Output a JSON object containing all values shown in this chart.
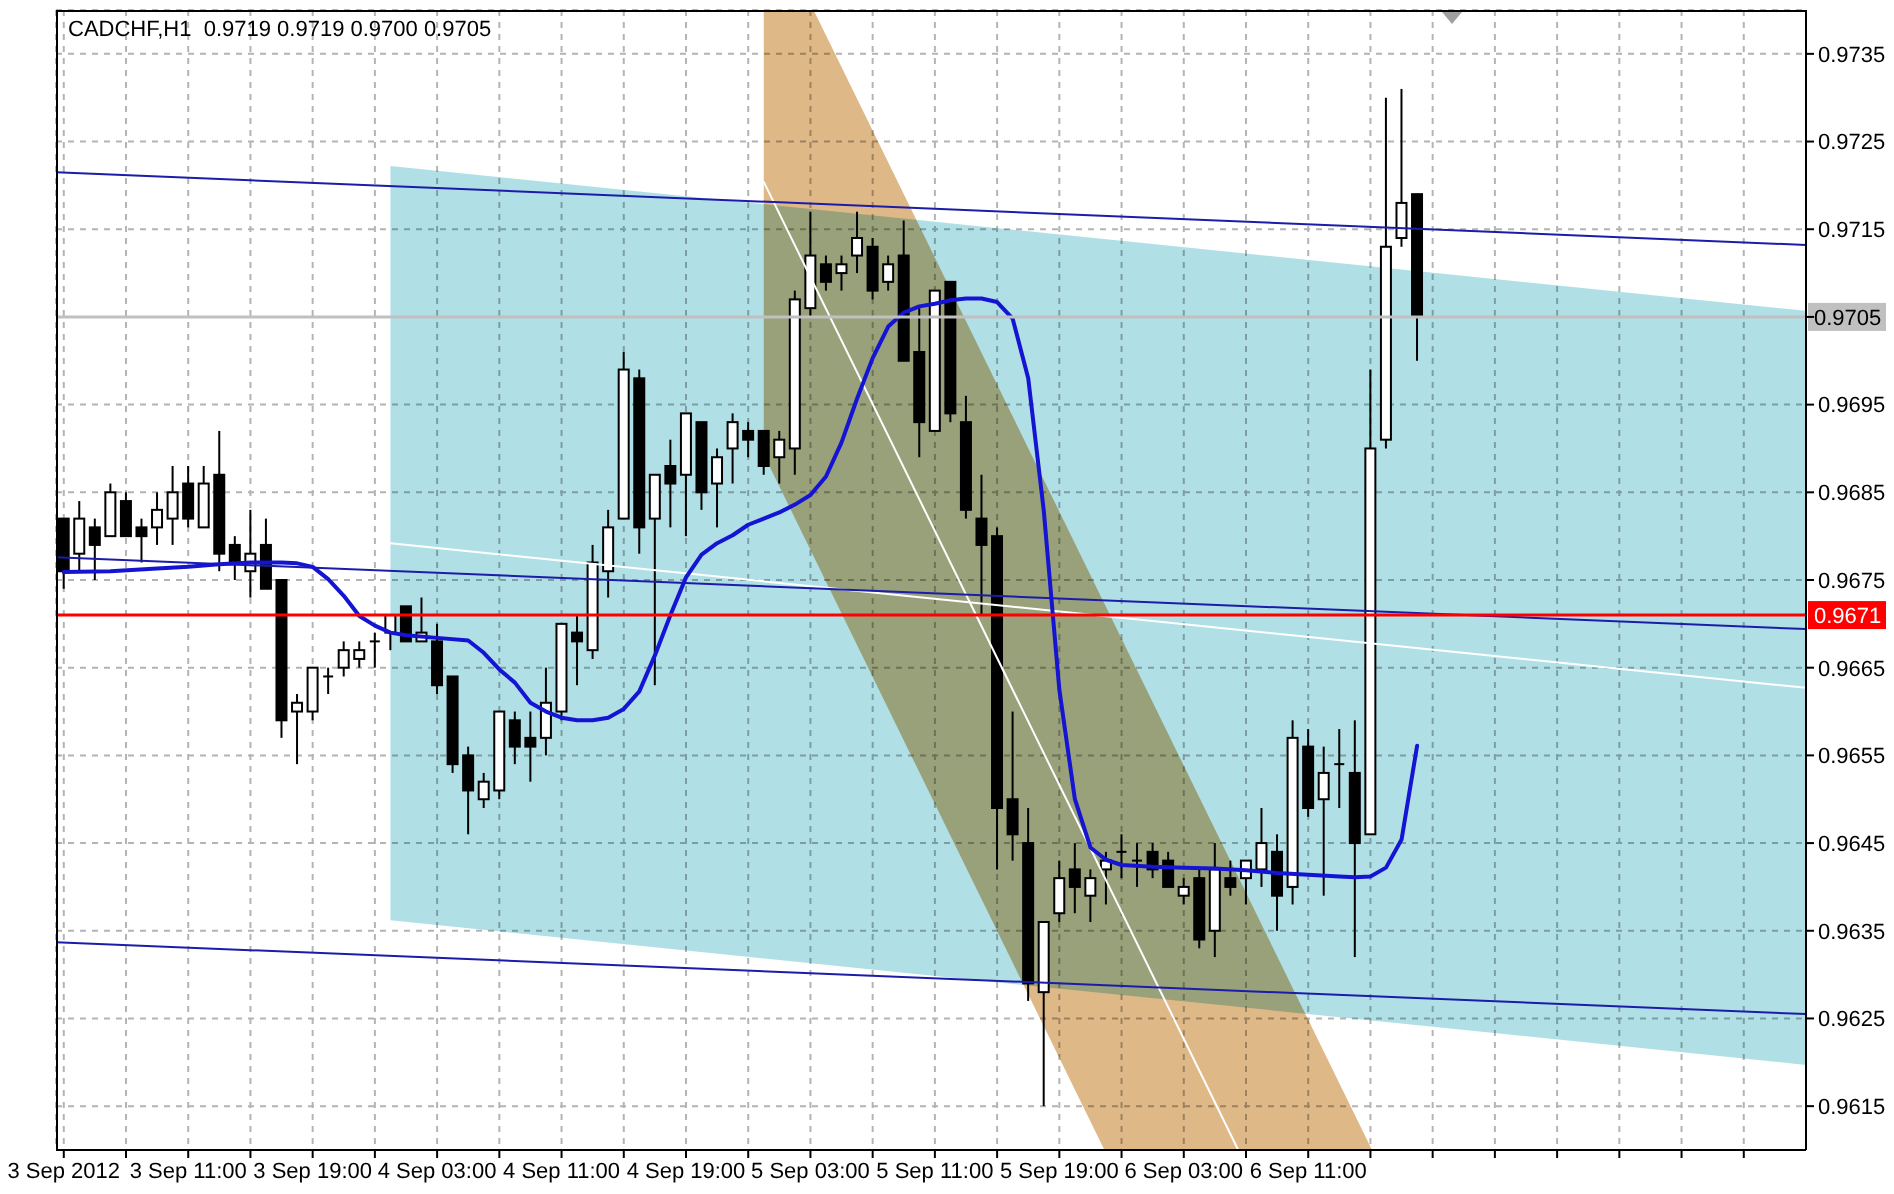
{
  "chart_data": {
    "type": "candlestick",
    "title": "CADCHF,H1  0.9719 0.9719 0.9700 0.9705",
    "color": "#000000",
    "x": [
      "2012-09-03T03:00",
      "2012-09-03T04:00",
      "2012-09-03T05:00",
      "2012-09-03T06:00",
      "2012-09-03T07:00",
      "2012-09-03T08:00",
      "2012-09-03T09:00",
      "2012-09-03T10:00",
      "2012-09-03T11:00",
      "2012-09-03T12:00",
      "2012-09-03T13:00",
      "2012-09-03T14:00",
      "2012-09-03T15:00",
      "2012-09-03T16:00",
      "2012-09-03T17:00",
      "2012-09-03T18:00",
      "2012-09-03T19:00",
      "2012-09-03T20:00",
      "2012-09-03T21:00",
      "2012-09-03T22:00",
      "2012-09-03T23:00",
      "2012-09-04T00:00",
      "2012-09-04T01:00",
      "2012-09-04T02:00",
      "2012-09-04T03:00",
      "2012-09-04T04:00",
      "2012-09-04T05:00",
      "2012-09-04T06:00",
      "2012-09-04T07:00",
      "2012-09-04T08:00",
      "2012-09-04T09:00",
      "2012-09-04T10:00",
      "2012-09-04T11:00",
      "2012-09-04T12:00",
      "2012-09-04T13:00",
      "2012-09-04T14:00",
      "2012-09-04T15:00",
      "2012-09-04T16:00",
      "2012-09-04T17:00",
      "2012-09-04T18:00",
      "2012-09-04T19:00",
      "2012-09-04T20:00",
      "2012-09-04T21:00",
      "2012-09-04T22:00",
      "2012-09-04T23:00",
      "2012-09-05T00:00",
      "2012-09-05T01:00",
      "2012-09-05T02:00",
      "2012-09-05T03:00",
      "2012-09-05T04:00",
      "2012-09-05T05:00",
      "2012-09-05T06:00",
      "2012-09-05T07:00",
      "2012-09-05T08:00",
      "2012-09-05T09:00",
      "2012-09-05T10:00",
      "2012-09-05T11:00",
      "2012-09-05T12:00",
      "2012-09-05T13:00",
      "2012-09-05T14:00",
      "2012-09-05T15:00",
      "2012-09-05T16:00",
      "2012-09-05T17:00",
      "2012-09-05T18:00",
      "2012-09-05T19:00",
      "2012-09-05T20:00",
      "2012-09-05T21:00",
      "2012-09-05T22:00",
      "2012-09-05T23:00",
      "2012-09-06T00:00",
      "2012-09-06T01:00",
      "2012-09-06T02:00",
      "2012-09-06T03:00",
      "2012-09-06T04:00",
      "2012-09-06T05:00",
      "2012-09-06T06:00",
      "2012-09-06T07:00",
      "2012-09-06T08:00",
      "2012-09-06T09:00",
      "2012-09-06T10:00",
      "2012-09-06T11:00",
      "2012-09-06T12:00",
      "2012-09-06T13:00",
      "2012-09-06T14:00",
      "2012-09-06T15:00",
      "2012-09-06T16:00",
      "2012-09-06T17:00",
      "2012-09-06T18:00"
    ],
    "ohlc": [
      [
        0.9682,
        0.9682,
        0.9674,
        0.9676
      ],
      [
        0.9678,
        0.9684,
        0.9676,
        0.9682
      ],
      [
        0.9681,
        0.9682,
        0.9675,
        0.9679
      ],
      [
        0.968,
        0.9686,
        0.968,
        0.9685
      ],
      [
        0.9684,
        0.9685,
        0.968,
        0.968
      ],
      [
        0.9681,
        0.9682,
        0.9677,
        0.968
      ],
      [
        0.9681,
        0.9685,
        0.9679,
        0.9683
      ],
      [
        0.9682,
        0.9688,
        0.9679,
        0.9685
      ],
      [
        0.9686,
        0.9688,
        0.9681,
        0.9682
      ],
      [
        0.9681,
        0.9688,
        0.9681,
        0.9686
      ],
      [
        0.9687,
        0.9692,
        0.9676,
        0.9678
      ],
      [
        0.9679,
        0.968,
        0.9675,
        0.9677
      ],
      [
        0.9676,
        0.9683,
        0.9673,
        0.9678
      ],
      [
        0.9679,
        0.9682,
        0.9674,
        0.9674
      ],
      [
        0.9675,
        0.9675,
        0.9657,
        0.9659
      ],
      [
        0.966,
        0.9662,
        0.9654,
        0.9661
      ],
      [
        0.966,
        0.9665,
        0.9659,
        0.9665
      ],
      [
        0.9664,
        0.9665,
        0.9662,
        0.9664
      ],
      [
        0.9665,
        0.9668,
        0.9664,
        0.9667
      ],
      [
        0.9666,
        0.9668,
        0.9665,
        0.9667
      ],
      [
        0.9668,
        0.9669,
        0.9665,
        0.9668
      ],
      [
        0.9669,
        0.9671,
        0.9667,
        0.9671
      ],
      [
        0.9672,
        0.9672,
        0.9668,
        0.9668
      ],
      [
        0.9668,
        0.9673,
        0.9668,
        0.9669
      ],
      [
        0.9668,
        0.967,
        0.9662,
        0.9663
      ],
      [
        0.9664,
        0.9664,
        0.9653,
        0.9654
      ],
      [
        0.9655,
        0.9656,
        0.9646,
        0.9651
      ],
      [
        0.965,
        0.9653,
        0.9649,
        0.9652
      ],
      [
        0.9651,
        0.966,
        0.965,
        0.966
      ],
      [
        0.9659,
        0.966,
        0.9654,
        0.9656
      ],
      [
        0.9657,
        0.966,
        0.9652,
        0.9656
      ],
      [
        0.9657,
        0.9665,
        0.9655,
        0.9661
      ],
      [
        0.966,
        0.967,
        0.9659,
        0.967
      ],
      [
        0.9669,
        0.9671,
        0.9663,
        0.9668
      ],
      [
        0.9667,
        0.9679,
        0.9666,
        0.9677
      ],
      [
        0.9676,
        0.9683,
        0.9673,
        0.9681
      ],
      [
        0.9682,
        0.9701,
        0.9682,
        0.9699
      ],
      [
        0.9698,
        0.9699,
        0.9678,
        0.9681
      ],
      [
        0.9682,
        0.9687,
        0.9663,
        0.9687
      ],
      [
        0.9688,
        0.9691,
        0.9681,
        0.9686
      ],
      [
        0.9687,
        0.9694,
        0.968,
        0.9694
      ],
      [
        0.9693,
        0.9693,
        0.9683,
        0.9685
      ],
      [
        0.9686,
        0.969,
        0.9681,
        0.9689
      ],
      [
        0.969,
        0.9694,
        0.9686,
        0.9693
      ],
      [
        0.9692,
        0.9693,
        0.9689,
        0.9691
      ],
      [
        0.9692,
        0.9692,
        0.9687,
        0.9688
      ],
      [
        0.9689,
        0.9692,
        0.9686,
        0.9691
      ],
      [
        0.969,
        0.9708,
        0.9687,
        0.9707
      ],
      [
        0.9706,
        0.9717,
        0.9705,
        0.9712
      ],
      [
        0.9711,
        0.9712,
        0.9708,
        0.9709
      ],
      [
        0.971,
        0.9712,
        0.9708,
        0.9711
      ],
      [
        0.9712,
        0.9717,
        0.971,
        0.9714
      ],
      [
        0.9713,
        0.9714,
        0.9707,
        0.9708
      ],
      [
        0.9709,
        0.9712,
        0.9708,
        0.9711
      ],
      [
        0.9712,
        0.9716,
        0.97,
        0.97
      ],
      [
        0.9701,
        0.9706,
        0.9689,
        0.9693
      ],
      [
        0.9692,
        0.9708,
        0.9692,
        0.9708
      ],
      [
        0.9709,
        0.9709,
        0.9693,
        0.9694
      ],
      [
        0.9693,
        0.9696,
        0.9682,
        0.9683
      ],
      [
        0.9682,
        0.9687,
        0.9671,
        0.9679
      ],
      [
        0.968,
        0.9681,
        0.9642,
        0.9649
      ],
      [
        0.965,
        0.966,
        0.9643,
        0.9646
      ],
      [
        0.9645,
        0.9649,
        0.9627,
        0.9629
      ],
      [
        0.9628,
        0.9636,
        0.9615,
        0.9636
      ],
      [
        0.9637,
        0.9643,
        0.9636,
        0.9641
      ],
      [
        0.9642,
        0.9645,
        0.9637,
        0.964
      ],
      [
        0.9639,
        0.9642,
        0.9636,
        0.9641
      ],
      [
        0.9642,
        0.9644,
        0.9638,
        0.9643
      ],
      [
        0.9644,
        0.9646,
        0.9641,
        0.9644
      ],
      [
        0.9643,
        0.9645,
        0.964,
        0.9643
      ],
      [
        0.9644,
        0.9645,
        0.9641,
        0.9642
      ],
      [
        0.9643,
        0.9644,
        0.964,
        0.964
      ],
      [
        0.9639,
        0.9641,
        0.9638,
        0.964
      ],
      [
        0.9641,
        0.9642,
        0.9633,
        0.9634
      ],
      [
        0.9635,
        0.9645,
        0.9632,
        0.9642
      ],
      [
        0.9641,
        0.9643,
        0.9639,
        0.964
      ],
      [
        0.9641,
        0.9643,
        0.9638,
        0.9643
      ],
      [
        0.9642,
        0.9649,
        0.964,
        0.9645
      ],
      [
        0.9644,
        0.9646,
        0.9635,
        0.9639
      ],
      [
        0.964,
        0.9659,
        0.9638,
        0.9657
      ],
      [
        0.9656,
        0.9658,
        0.9648,
        0.9649
      ],
      [
        0.965,
        0.9656,
        0.9639,
        0.9653
      ],
      [
        0.9654,
        0.9658,
        0.9649,
        0.9654
      ],
      [
        0.9653,
        0.9659,
        0.9632,
        0.9645
      ],
      [
        0.9646,
        0.9699,
        0.9646,
        0.969
      ],
      [
        0.9691,
        0.973,
        0.969,
        0.9713
      ],
      [
        0.9714,
        0.9731,
        0.9713,
        0.9718
      ],
      [
        0.9719,
        0.9719,
        0.97,
        0.9705
      ]
    ],
    "series": [
      {
        "type": "line",
        "color": "#b0e0e6",
        "x": [
          "2012-09-04T00:00",
          "2012-09-07T19:00"
        ],
        "values": [
          null,
          null
        ],
        "lower": [
          0.96362,
          0.96197
        ],
        "upper": [
          0.97222,
          0.97057
        ]
      },
      {
        "type": "line",
        "color": "#deb887",
        "x": [
          "2012-09-05T00:00",
          "2012-09-05T03:12",
          "2012-09-05T21:54",
          "2012-09-06T15:06"
        ],
        "values": [
          null,
          null,
          null,
          null
        ],
        "lower": [
          0.96893,
          0.96777,
          0.961,
          0.961
        ],
        "upper": [
          0.974,
          0.974,
          0.96723,
          0.961
        ]
      },
      {
        "type": "line",
        "color": "#ffffff",
        "x": [
          "2012-09-04T00:00",
          "2012-09-07T19:00"
        ],
        "values": [
          0.96792,
          0.96627
        ]
      },
      {
        "type": "line",
        "color": "#ffffff",
        "x": [
          "2012-09-05T00:00",
          "2012-09-06T06:30"
        ],
        "values": [
          0.97204,
          0.961
        ]
      },
      {
        "type": "line",
        "color": "#1c1ca8",
        "x": [
          "2012-09-03T02:30",
          "2012-09-07T19:00"
        ],
        "values": [
          0.97215,
          0.97132
        ]
      },
      {
        "type": "line",
        "color": "#1c1ca8",
        "x": [
          "2012-09-03T02:30",
          "2012-09-07T19:00"
        ],
        "values": [
          0.96776,
          0.96694
        ]
      },
      {
        "type": "line",
        "color": "#1c1ca8",
        "x": [
          "2012-09-03T02:30",
          "2012-09-07T19:00"
        ],
        "values": [
          0.96337,
          0.96255
        ]
      },
      {
        "type": "line",
        "color": "#1414d2",
        "x": [
          "2012-09-03T03:00",
          "2012-09-03T06:00",
          "2012-09-03T09:00",
          "2012-09-03T11:00",
          "2012-09-03T13:00",
          "2012-09-03T15:00",
          "2012-09-03T17:00",
          "2012-09-03T18:00",
          "2012-09-03T19:00",
          "2012-09-03T20:00",
          "2012-09-03T21:00",
          "2012-09-03T22:00",
          "2012-09-03T23:00",
          "2012-09-04T00:00",
          "2012-09-04T01:00",
          "2012-09-04T03:00",
          "2012-09-04T05:00",
          "2012-09-04T06:00",
          "2012-09-04T07:00",
          "2012-09-04T08:00",
          "2012-09-04T09:00",
          "2012-09-04T10:00",
          "2012-09-04T11:00",
          "2012-09-04T12:00",
          "2012-09-04T13:00",
          "2012-09-04T14:00",
          "2012-09-04T15:00",
          "2012-09-04T16:00",
          "2012-09-04T17:00",
          "2012-09-04T18:00",
          "2012-09-04T19:00",
          "2012-09-04T20:00",
          "2012-09-04T21:00",
          "2012-09-04T22:00",
          "2012-09-04T23:00",
          "2012-09-05T00:00",
          "2012-09-05T01:00",
          "2012-09-05T02:00",
          "2012-09-05T03:00",
          "2012-09-05T04:00",
          "2012-09-05T05:00",
          "2012-09-05T06:00",
          "2012-09-05T07:00",
          "2012-09-05T08:00",
          "2012-09-05T09:00",
          "2012-09-05T10:00",
          "2012-09-05T11:00",
          "2012-09-05T12:00",
          "2012-09-05T13:00",
          "2012-09-05T14:00",
          "2012-09-05T15:00",
          "2012-09-05T16:00",
          "2012-09-05T17:00",
          "2012-09-05T18:00",
          "2012-09-05T19:00",
          "2012-09-05T20:00",
          "2012-09-05T21:00",
          "2012-09-05T22:00",
          "2012-09-05T23:00",
          "2012-09-06T01:00",
          "2012-09-06T03:00",
          "2012-09-06T05:00",
          "2012-09-06T07:00",
          "2012-09-06T09:00",
          "2012-09-06T11:00",
          "2012-09-06T13:00",
          "2012-09-06T14:00",
          "2012-09-06T15:00",
          "2012-09-06T16:00",
          "2012-09-06T17:00",
          "2012-09-06T18:00"
        ],
        "values": [
          0.96759,
          0.9676,
          0.96763,
          0.96765,
          0.96768,
          0.9677,
          0.9677,
          0.96769,
          0.96765,
          0.96751,
          0.96732,
          0.96709,
          0.96698,
          0.9669,
          0.96687,
          0.96684,
          0.96681,
          0.96667,
          0.96648,
          0.96633,
          0.9661,
          0.966,
          0.96593,
          0.9659,
          0.9659,
          0.96593,
          0.96603,
          0.96623,
          0.96664,
          0.9671,
          0.96753,
          0.96779,
          0.96792,
          0.96801,
          0.96813,
          0.9682,
          0.96827,
          0.96836,
          0.96847,
          0.96868,
          0.96907,
          0.96957,
          0.97003,
          0.97039,
          0.97055,
          0.97062,
          0.97065,
          0.97069,
          0.97071,
          0.97071,
          0.97067,
          0.97048,
          0.9698,
          0.96829,
          0.96625,
          0.965,
          0.96445,
          0.96431,
          0.96425,
          0.96423,
          0.96422,
          0.96421,
          0.96419,
          0.96416,
          0.96414,
          0.96412,
          0.96411,
          0.96412,
          0.96422,
          0.96454,
          0.96561
        ]
      }
    ],
    "xlim": [
      "2012-09-03T02:30",
      "2012-09-07T19:00"
    ],
    "xticks": [
      {
        "value": "2012-09-03T03:00",
        "label": "3 Sep 2012"
      },
      {
        "value": "2012-09-03T07:00",
        "label": null
      },
      {
        "value": "2012-09-03T11:00",
        "label": "3 Sep 11:00"
      },
      {
        "value": "2012-09-03T15:00",
        "label": null
      },
      {
        "value": "2012-09-03T19:00",
        "label": "3 Sep 19:00"
      },
      {
        "value": "2012-09-03T23:00",
        "label": null
      },
      {
        "value": "2012-09-04T03:00",
        "label": "4 Sep 03:00"
      },
      {
        "value": "2012-09-04T07:00",
        "label": null
      },
      {
        "value": "2012-09-04T11:00",
        "label": "4 Sep 11:00"
      },
      {
        "value": "2012-09-04T15:00",
        "label": null
      },
      {
        "value": "2012-09-04T19:00",
        "label": "4 Sep 19:00"
      },
      {
        "value": "2012-09-04T23:00",
        "label": null
      },
      {
        "value": "2012-09-05T03:00",
        "label": "5 Sep 03:00"
      },
      {
        "value": "2012-09-05T07:00",
        "label": null
      },
      {
        "value": "2012-09-05T11:00",
        "label": "5 Sep 11:00"
      },
      {
        "value": "2012-09-05T15:00",
        "label": null
      },
      {
        "value": "2012-09-05T19:00",
        "label": "5 Sep 19:00"
      },
      {
        "value": "2012-09-05T23:00",
        "label": null
      },
      {
        "value": "2012-09-06T03:00",
        "label": "6 Sep 03:00"
      },
      {
        "value": "2012-09-06T07:00",
        "label": null
      },
      {
        "value": "2012-09-06T11:00",
        "label": "6 Sep 11:00"
      },
      {
        "value": "2012-09-06T15:00",
        "label": null
      },
      {
        "value": "2012-09-06T19:00",
        "label": null
      },
      {
        "value": "2012-09-06T23:00",
        "label": null
      },
      {
        "value": "2012-09-07T03:00",
        "label": null
      },
      {
        "value": "2012-09-07T07:00",
        "label": null
      },
      {
        "value": "2012-09-07T11:00",
        "label": null
      },
      {
        "value": "2012-09-07T15:00",
        "label": null
      }
    ],
    "ylim": [
      0.961,
      0.974
    ],
    "yticks": [
      0.9615,
      0.9625,
      0.9635,
      0.9645,
      0.9655,
      0.9665,
      0.9675,
      0.9685,
      0.9695,
      {
        "value": 0.9705,
        "label": null
      },
      0.9715,
      0.9725,
      0.9735
    ],
    "grid": true,
    "ref_lines": [
      {
        "axis": "y",
        "value": 0.9671,
        "label": "0.9671",
        "color": "#ff0000"
      },
      {
        "axis": "y",
        "value": 0.9705,
        "label": "0.9705",
        "color": "#c0c0c0"
      }
    ]
  }
}
